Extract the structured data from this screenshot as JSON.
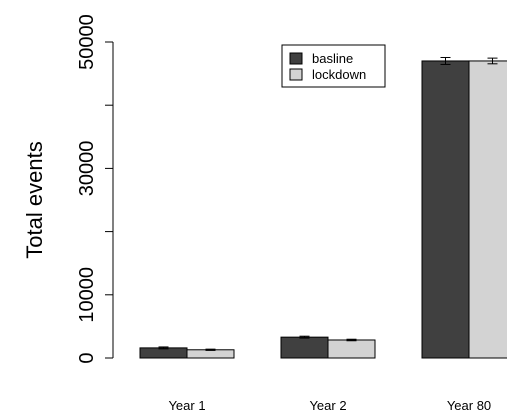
{
  "chart_data": {
    "type": "bar",
    "title": "",
    "xlabel": "",
    "ylabel": "Total events",
    "categories": [
      "Year 1",
      "Year 2",
      "Year 80"
    ],
    "series": [
      {
        "name": "basline",
        "values": [
          1600,
          3300,
          47000
        ],
        "error": [
          150,
          150,
          550
        ],
        "color": "#404040"
      },
      {
        "name": "lockdown",
        "values": [
          1300,
          2850,
          47000
        ],
        "error": [
          100,
          120,
          450
        ],
        "color": "#d3d3d3"
      }
    ],
    "yticks": [
      0,
      10000,
      30000,
      50000
    ],
    "ylim": [
      0,
      50000
    ],
    "grid": false,
    "legend_position": "top-center",
    "error_bars": true
  }
}
